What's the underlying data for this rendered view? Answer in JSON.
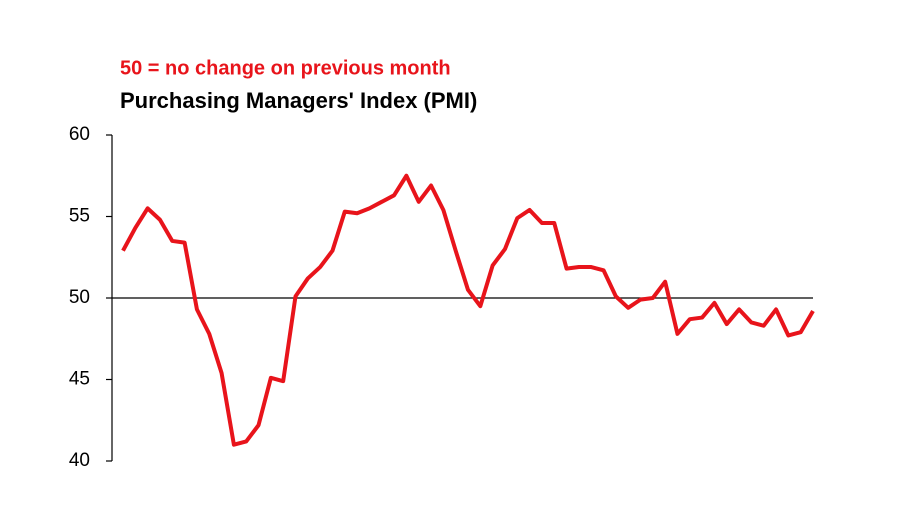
{
  "chart_data": {
    "type": "line",
    "annotation": "50 =  no change on previous month",
    "title": "Purchasing Managers' Index (PMI)",
    "series": [
      {
        "color": "#e8141b",
        "values": [
          52.9,
          54.3,
          55.5,
          54.8,
          53.5,
          53.4,
          49.3,
          47.8,
          45.4,
          41.0,
          41.2,
          42.2,
          45.1,
          44.9,
          50.1,
          51.2,
          51.9,
          52.9,
          55.3,
          55.2,
          55.5,
          55.9,
          56.3,
          57.5,
          55.9,
          56.9,
          55.4,
          52.9,
          50.5,
          49.5,
          52.0,
          53.0,
          54.9,
          55.4,
          54.6,
          54.6,
          51.8,
          51.9,
          51.9,
          51.7,
          50.1,
          49.4,
          49.9,
          50.0,
          51.0,
          47.8,
          48.7,
          48.8,
          49.7,
          48.4,
          49.3,
          48.5,
          48.3,
          49.3,
          47.7,
          47.9,
          49.2
        ]
      }
    ],
    "reference_line": 50,
    "ylim": [
      40,
      60
    ],
    "yticks": [
      40,
      45,
      50,
      55,
      60
    ]
  }
}
